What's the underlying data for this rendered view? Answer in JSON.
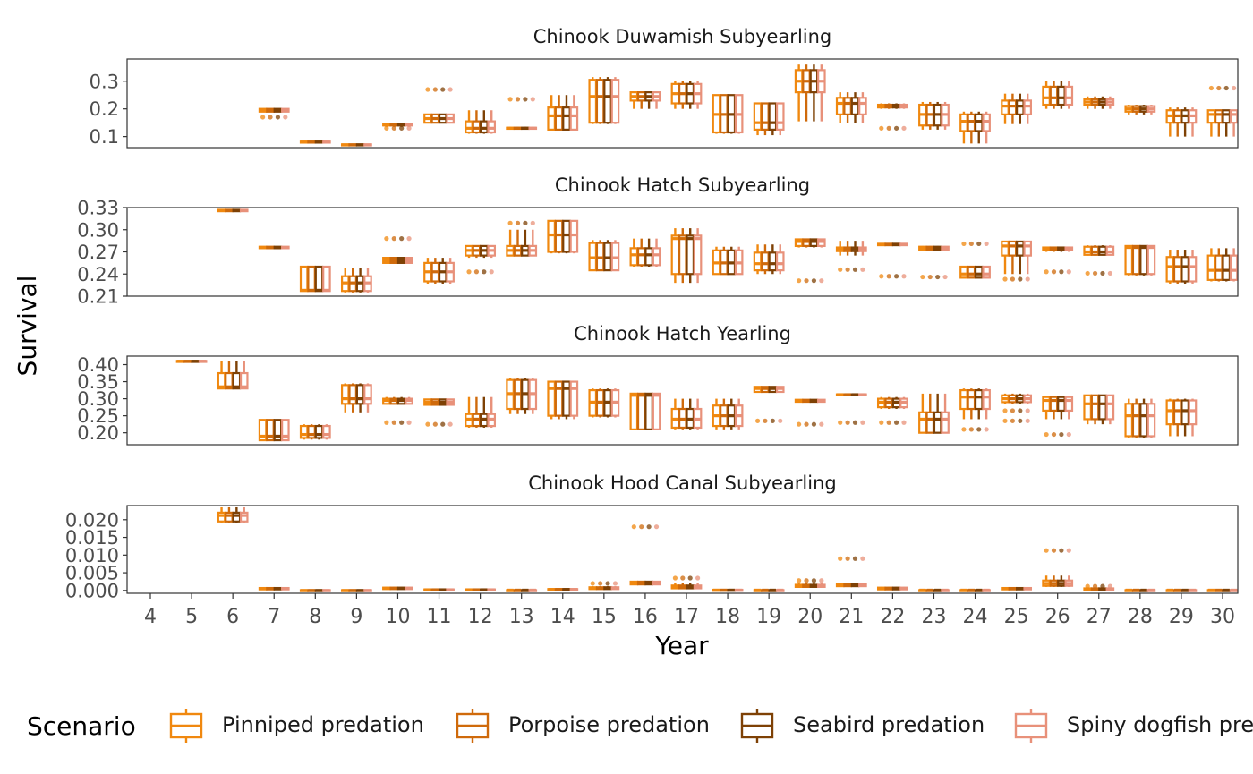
{
  "colors": {
    "Pinniped predation": "#F0880F",
    "Porpoise predation": "#CF6A0B",
    "Seabird predation": "#7E4105",
    "Spiny dogfish predation": "#E8917A",
    "panel_border": "#333333",
    "tick_text": "#4d4d4d",
    "strip_text": "#1a1a1a"
  },
  "chart_data": {
    "type": "boxplot",
    "xlabel": "Year",
    "ylabel": "Survival",
    "x": [
      4,
      5,
      6,
      7,
      8,
      9,
      10,
      11,
      12,
      13,
      14,
      15,
      16,
      17,
      18,
      19,
      20,
      21,
      22,
      23,
      24,
      25,
      26,
      27,
      28,
      29,
      30
    ],
    "legend": {
      "title": "Scenario",
      "placement": "bottom",
      "entries": [
        "Pinniped predation",
        "Porpoise predation",
        "Seabird predation",
        "Spiny dogfish predation"
      ]
    },
    "panels": [
      {
        "title": "Chinook Duwamish Subyearling",
        "ylim": [
          0.06,
          0.38
        ],
        "yticks": [
          0.1,
          0.2,
          0.3
        ],
        "ytick_labels": [
          "0.1",
          "0.2",
          "0.3"
        ],
        "stats_note": "per year: [year, min, q1, median, q3, max, outliers]",
        "stats": [
          [
            7,
            0.19,
            0.19,
            0.195,
            0.2,
            0.2,
            [
              0.17
            ]
          ],
          [
            8,
            0.078,
            0.078,
            0.08,
            0.082,
            0.082,
            []
          ],
          [
            9,
            0.068,
            0.068,
            0.07,
            0.072,
            0.072,
            []
          ],
          [
            10,
            0.135,
            0.14,
            0.142,
            0.145,
            0.145,
            [
              0.13
            ]
          ],
          [
            11,
            0.15,
            0.15,
            0.165,
            0.18,
            0.18,
            [
              0.27
            ]
          ],
          [
            12,
            0.11,
            0.115,
            0.13,
            0.155,
            0.195,
            []
          ],
          [
            13,
            0.125,
            0.128,
            0.13,
            0.132,
            0.135,
            [
              0.235
            ]
          ],
          [
            14,
            0.125,
            0.125,
            0.175,
            0.205,
            0.25,
            []
          ],
          [
            15,
            0.145,
            0.15,
            0.245,
            0.305,
            0.315,
            []
          ],
          [
            16,
            0.2,
            0.23,
            0.245,
            0.26,
            0.26,
            []
          ],
          [
            17,
            0.2,
            0.22,
            0.255,
            0.29,
            0.3,
            []
          ],
          [
            18,
            0.11,
            0.115,
            0.18,
            0.25,
            0.25,
            []
          ],
          [
            19,
            0.105,
            0.125,
            0.15,
            0.22,
            0.22,
            []
          ],
          [
            20,
            0.155,
            0.26,
            0.3,
            0.34,
            0.36,
            []
          ],
          [
            21,
            0.15,
            0.18,
            0.22,
            0.24,
            0.26,
            []
          ],
          [
            22,
            0.2,
            0.205,
            0.21,
            0.215,
            0.22,
            [
              0.13
            ]
          ],
          [
            23,
            0.125,
            0.14,
            0.18,
            0.215,
            0.225,
            []
          ],
          [
            24,
            0.075,
            0.12,
            0.155,
            0.18,
            0.19,
            []
          ],
          [
            25,
            0.145,
            0.18,
            0.21,
            0.23,
            0.255,
            []
          ],
          [
            26,
            0.2,
            0.215,
            0.24,
            0.28,
            0.3,
            []
          ],
          [
            27,
            0.2,
            0.215,
            0.225,
            0.235,
            0.245,
            []
          ],
          [
            28,
            0.18,
            0.19,
            0.2,
            0.21,
            0.215,
            []
          ],
          [
            29,
            0.1,
            0.15,
            0.175,
            0.195,
            0.205,
            []
          ],
          [
            30,
            0.1,
            0.15,
            0.18,
            0.195,
            0.195,
            [
              0.275
            ]
          ]
        ]
      },
      {
        "title": "Chinook Hatch Subyearling",
        "ylim": [
          0.21,
          0.33
        ],
        "yticks": [
          0.21,
          0.24,
          0.27,
          0.3,
          0.33
        ],
        "ytick_labels": [
          "0.21",
          "0.24",
          "0.27",
          "0.30",
          "0.33"
        ],
        "stats": [
          [
            6,
            0.325,
            0.325,
            0.326,
            0.327,
            0.327,
            []
          ],
          [
            7,
            0.275,
            0.275,
            0.276,
            0.277,
            0.277,
            []
          ],
          [
            8,
            0.217,
            0.217,
            0.218,
            0.25,
            0.25,
            []
          ],
          [
            9,
            0.215,
            0.217,
            0.228,
            0.237,
            0.248,
            []
          ],
          [
            10,
            0.254,
            0.255,
            0.258,
            0.262,
            0.263,
            [
              0.288
            ]
          ],
          [
            11,
            0.227,
            0.23,
            0.243,
            0.255,
            0.262,
            []
          ],
          [
            12,
            0.262,
            0.265,
            0.272,
            0.278,
            0.278,
            [
              0.243
            ]
          ],
          [
            13,
            0.265,
            0.265,
            0.272,
            0.278,
            0.3,
            [
              0.309
            ]
          ],
          [
            14,
            0.268,
            0.27,
            0.293,
            0.312,
            0.312,
            []
          ],
          [
            15,
            0.245,
            0.245,
            0.262,
            0.282,
            0.286,
            []
          ],
          [
            16,
            0.25,
            0.252,
            0.266,
            0.275,
            0.288,
            []
          ],
          [
            17,
            0.228,
            0.24,
            0.288,
            0.292,
            0.302,
            []
          ],
          [
            18,
            0.24,
            0.24,
            0.255,
            0.272,
            0.277,
            []
          ],
          [
            19,
            0.24,
            0.245,
            0.254,
            0.269,
            0.28,
            []
          ],
          [
            20,
            0.276,
            0.278,
            0.284,
            0.287,
            0.287,
            [
              0.231
            ]
          ],
          [
            21,
            0.265,
            0.271,
            0.274,
            0.276,
            0.285,
            [
              0.246
            ]
          ],
          [
            22,
            0.279,
            0.279,
            0.28,
            0.281,
            0.281,
            [
              0.237
            ]
          ],
          [
            23,
            0.272,
            0.273,
            0.276,
            0.277,
            0.278,
            [
              0.236
            ]
          ],
          [
            24,
            0.235,
            0.235,
            0.24,
            0.25,
            0.25,
            [
              0.281
            ]
          ],
          [
            25,
            0.24,
            0.265,
            0.278,
            0.284,
            0.284,
            [
              0.233
            ]
          ],
          [
            26,
            0.27,
            0.272,
            0.274,
            0.276,
            0.277,
            [
              0.243
            ]
          ],
          [
            27,
            0.265,
            0.266,
            0.27,
            0.277,
            0.279,
            [
              0.241
            ]
          ],
          [
            28,
            0.238,
            0.24,
            0.276,
            0.278,
            0.279,
            []
          ],
          [
            29,
            0.227,
            0.23,
            0.25,
            0.263,
            0.273,
            []
          ],
          [
            30,
            0.23,
            0.232,
            0.245,
            0.265,
            0.275,
            []
          ]
        ]
      },
      {
        "title": "Chinook Hatch Yearling",
        "ylim": [
          0.165,
          0.425
        ],
        "yticks": [
          0.2,
          0.25,
          0.3,
          0.35,
          0.4
        ],
        "ytick_labels": [
          "0.20",
          "0.25",
          "0.30",
          "0.35",
          "0.40"
        ],
        "stats": [
          [
            5,
            0.409,
            0.409,
            0.41,
            0.411,
            0.411,
            []
          ],
          [
            6,
            0.33,
            0.33,
            0.335,
            0.375,
            0.41,
            []
          ],
          [
            7,
            0.178,
            0.178,
            0.19,
            0.238,
            0.24,
            []
          ],
          [
            8,
            0.18,
            0.185,
            0.195,
            0.22,
            0.225,
            []
          ],
          [
            9,
            0.26,
            0.285,
            0.3,
            0.34,
            0.345,
            []
          ],
          [
            10,
            0.283,
            0.285,
            0.295,
            0.3,
            0.305,
            [
              0.23
            ]
          ],
          [
            11,
            0.28,
            0.282,
            0.29,
            0.298,
            0.3,
            [
              0.225
            ]
          ],
          [
            12,
            0.215,
            0.22,
            0.24,
            0.255,
            0.305,
            []
          ],
          [
            13,
            0.255,
            0.27,
            0.315,
            0.355,
            0.36,
            []
          ],
          [
            14,
            0.24,
            0.25,
            0.33,
            0.35,
            0.35,
            []
          ],
          [
            15,
            0.245,
            0.25,
            0.29,
            0.325,
            0.33,
            []
          ],
          [
            16,
            0.21,
            0.21,
            0.31,
            0.315,
            0.315,
            []
          ],
          [
            17,
            0.21,
            0.215,
            0.24,
            0.27,
            0.3,
            []
          ],
          [
            18,
            0.21,
            0.22,
            0.25,
            0.28,
            0.3,
            []
          ],
          [
            19,
            0.32,
            0.32,
            0.33,
            0.335,
            0.335,
            [
              0.235
            ]
          ],
          [
            20,
            0.29,
            0.291,
            0.294,
            0.297,
            0.298,
            [
              0.225
            ]
          ],
          [
            21,
            0.309,
            0.31,
            0.312,
            0.313,
            0.314,
            [
              0.23
            ]
          ],
          [
            22,
            0.27,
            0.275,
            0.29,
            0.3,
            0.305,
            [
              0.23
            ]
          ],
          [
            23,
            0.2,
            0.2,
            0.24,
            0.26,
            0.315,
            []
          ],
          [
            24,
            0.24,
            0.27,
            0.305,
            0.325,
            0.33,
            [
              0.21
            ]
          ],
          [
            25,
            0.285,
            0.29,
            0.3,
            0.31,
            0.315,
            [
              0.265,
              0.235
            ]
          ],
          [
            26,
            0.24,
            0.265,
            0.295,
            0.305,
            0.305,
            [
              0.195
            ]
          ],
          [
            27,
            0.225,
            0.24,
            0.285,
            0.31,
            0.31,
            []
          ],
          [
            28,
            0.185,
            0.19,
            0.25,
            0.285,
            0.3,
            []
          ],
          [
            29,
            0.19,
            0.225,
            0.265,
            0.295,
            0.3,
            []
          ]
        ]
      },
      {
        "title": "Chinook Hood Canal Subyearling",
        "ylim": [
          -0.0008,
          0.024
        ],
        "yticks": [
          0.0,
          0.005,
          0.01,
          0.015,
          0.02
        ],
        "ytick_labels": [
          "0.000",
          "0.005",
          "0.010",
          "0.015",
          "0.020"
        ],
        "stats": [
          [
            6,
            0.019,
            0.0195,
            0.0212,
            0.022,
            0.0235,
            []
          ],
          [
            7,
            0.0002,
            0.0003,
            0.0005,
            0.0007,
            0.0008,
            []
          ],
          [
            8,
            0.0,
            0.0,
            0.0,
            0.0001,
            0.0001,
            []
          ],
          [
            9,
            0.0,
            0.0,
            0.0,
            0.0001,
            0.0001,
            []
          ],
          [
            10,
            0.0003,
            0.0004,
            0.0006,
            0.0008,
            0.001,
            []
          ],
          [
            11,
            0.0001,
            0.0001,
            0.0002,
            0.0003,
            0.0003,
            []
          ],
          [
            12,
            0.0001,
            0.0001,
            0.0002,
            0.0003,
            0.0003,
            []
          ],
          [
            13,
            0.0,
            0.0,
            0.0001,
            0.0001,
            0.0001,
            []
          ],
          [
            14,
            0.0001,
            0.0002,
            0.0003,
            0.0004,
            0.0004,
            []
          ],
          [
            15,
            0.0003,
            0.0004,
            0.0006,
            0.0009,
            0.0012,
            [
              0.002
            ]
          ],
          [
            16,
            0.0015,
            0.0017,
            0.002,
            0.0025,
            0.0025,
            [
              0.018
            ]
          ],
          [
            17,
            0.0005,
            0.0006,
            0.0009,
            0.0014,
            0.002,
            [
              0.0035
            ]
          ],
          [
            18,
            0.0,
            0.0,
            0.0001,
            0.0002,
            0.0002,
            []
          ],
          [
            19,
            0.0,
            0.0,
            0.0001,
            0.0001,
            0.0001,
            []
          ],
          [
            20,
            0.0008,
            0.001,
            0.0013,
            0.0016,
            0.002,
            [
              0.0028
            ]
          ],
          [
            21,
            0.001,
            0.0012,
            0.0015,
            0.0019,
            0.0022,
            [
              0.009
            ]
          ],
          [
            22,
            0.0002,
            0.0003,
            0.0005,
            0.0008,
            0.001,
            []
          ],
          [
            23,
            0.0,
            0.0,
            0.0001,
            0.0001,
            0.0001,
            []
          ],
          [
            24,
            0.0,
            0.0,
            0.0001,
            0.0001,
            0.0001,
            []
          ],
          [
            25,
            0.0002,
            0.0003,
            0.0005,
            0.0007,
            0.0008,
            []
          ],
          [
            26,
            0.001,
            0.0013,
            0.002,
            0.0028,
            0.0042,
            [
              0.0113
            ]
          ],
          [
            27,
            0.0001,
            0.0002,
            0.0003,
            0.0006,
            0.0008,
            [
              0.0012
            ]
          ],
          [
            28,
            0.0,
            0.0,
            0.0001,
            0.0001,
            0.0001,
            []
          ],
          [
            29,
            0.0,
            0.0,
            0.0001,
            0.0001,
            0.0001,
            []
          ],
          [
            30,
            0.0,
            0.0,
            0.0001,
            0.0001,
            0.0001,
            []
          ]
        ]
      }
    ]
  }
}
